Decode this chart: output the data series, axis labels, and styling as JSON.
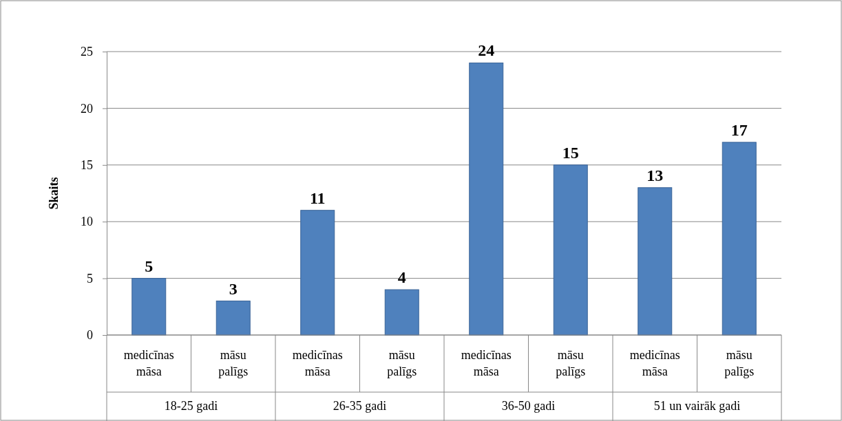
{
  "chart_data": {
    "type": "bar",
    "ylabel": "Skaits",
    "categories": [
      "medicīnas māsa",
      "māsu palīgs",
      "medicīnas māsa",
      "māsu palīgs",
      "medicīnas māsa",
      "māsu palīgs",
      "medicīnas māsa",
      "māsu palīgs"
    ],
    "values": [
      5,
      3,
      11,
      4,
      24,
      15,
      13,
      17
    ],
    "color": "#4f81bd",
    "ylim": [
      0,
      25
    ],
    "yticks": [
      0,
      5,
      10,
      15,
      20,
      25
    ],
    "grid": "y",
    "data_labels": true,
    "annotations": [
      "18-25 gadi",
      "26-35 gadi",
      "36-50 gadi",
      "51 un vairāk gadi"
    ]
  }
}
